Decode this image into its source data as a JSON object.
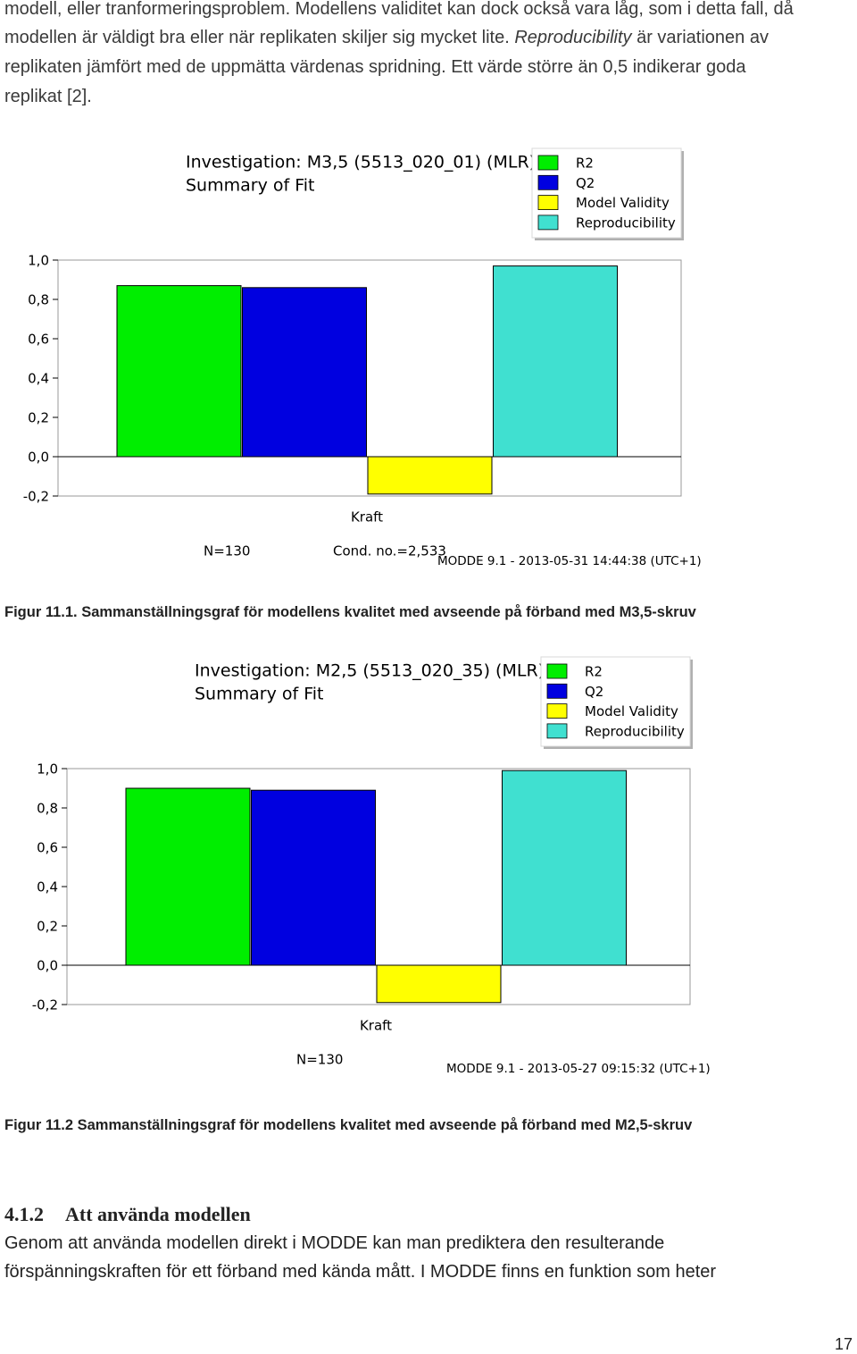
{
  "intro": {
    "lines": [
      "modell, eller tranformeringsproblem. Modellens validitet kan dock också vara låg, som i detta fall, då",
      {
        "before": "modellen är väldigt bra eller när replikaten skiljer sig mycket lite. ",
        "italic": "Reproducibility",
        "after": " är variationen av"
      },
      "replikaten jämfört med de uppmätta värdenas spridning. Ett värde större än 0,5 indikerar goda",
      "replikat [2]."
    ]
  },
  "chart_data": [
    {
      "type": "bar",
      "title": "Investigation: M3,5 (5513_020_01) (MLR)",
      "subtitle": "Summary of Fit",
      "categories": [
        "Kraft"
      ],
      "legend": "top-right",
      "ylim": [
        -0.2,
        1.0
      ],
      "yticks": [
        {
          "value": 1.0,
          "label": "1,0"
        },
        {
          "value": 0.8,
          "label": "0,8"
        },
        {
          "value": 0.6,
          "label": "0,6"
        },
        {
          "value": 0.4,
          "label": "0,4"
        },
        {
          "value": 0.2,
          "label": "0,2"
        },
        {
          "value": 0,
          "label": "0,0"
        },
        {
          "value": -0.2,
          "label": "-0,2"
        }
      ],
      "series": [
        {
          "name": "R2",
          "color": "#00ee00",
          "values": [
            0.87
          ]
        },
        {
          "name": "Q2",
          "color": "#0000e0",
          "values": [
            0.86
          ]
        },
        {
          "name": "Model Validity",
          "color": "#ffff00",
          "values": [
            -0.19
          ]
        },
        {
          "name": "Reproducibility",
          "color": "#40e0d0",
          "values": [
            0.97
          ]
        }
      ],
      "annotations": [
        "N=130",
        "Cond. no.=2,533",
        "MODDE 9.1 - 2013-05-31 14:44:38 (UTC+1)"
      ]
    },
    {
      "type": "bar",
      "title": "Investigation: M2,5 (5513_020_35) (MLR)",
      "subtitle": "Summary of Fit",
      "categories": [
        "Kraft"
      ],
      "legend": "top-right",
      "ylim": [
        -0.2,
        1.0
      ],
      "yticks": [
        {
          "value": 1.0,
          "label": "1,0"
        },
        {
          "value": 0.8,
          "label": "0,8"
        },
        {
          "value": 0.6,
          "label": "0,6"
        },
        {
          "value": 0.4,
          "label": "0,4"
        },
        {
          "value": 0.2,
          "label": "0,2"
        },
        {
          "value": 0,
          "label": "0,0"
        },
        {
          "value": -0.2,
          "label": "-0,2"
        }
      ],
      "series": [
        {
          "name": "R2",
          "color": "#00ee00",
          "values": [
            0.9
          ]
        },
        {
          "name": "Q2",
          "color": "#0000e0",
          "values": [
            0.89
          ]
        },
        {
          "name": "Model Validity",
          "color": "#ffff00",
          "values": [
            -0.19
          ]
        },
        {
          "name": "Reproducibility",
          "color": "#40e0d0",
          "values": [
            0.99
          ]
        }
      ],
      "annotations": [
        "N=130",
        "MODDE 9.1 - 2013-05-27 09:15:32 (UTC+1)"
      ]
    }
  ],
  "captions": [
    "Figur 11.1. Sammanställningsgraf för modellens kvalitet med avseende på förband med M3,5-skruv",
    "Figur 11.2 Sammanställningsgraf för modellens kvalitet med avseende på förband med M2,5-skruv"
  ],
  "section": {
    "number": "4.1.2",
    "title": "Att använda modellen"
  },
  "body": {
    "lines": [
      "Genom att använda modellen direkt i MODDE kan man prediktera den resulterande",
      "förspänningskraften för ett förband med kända mått. I MODDE finns en funktion som heter"
    ]
  },
  "page_number": "17"
}
